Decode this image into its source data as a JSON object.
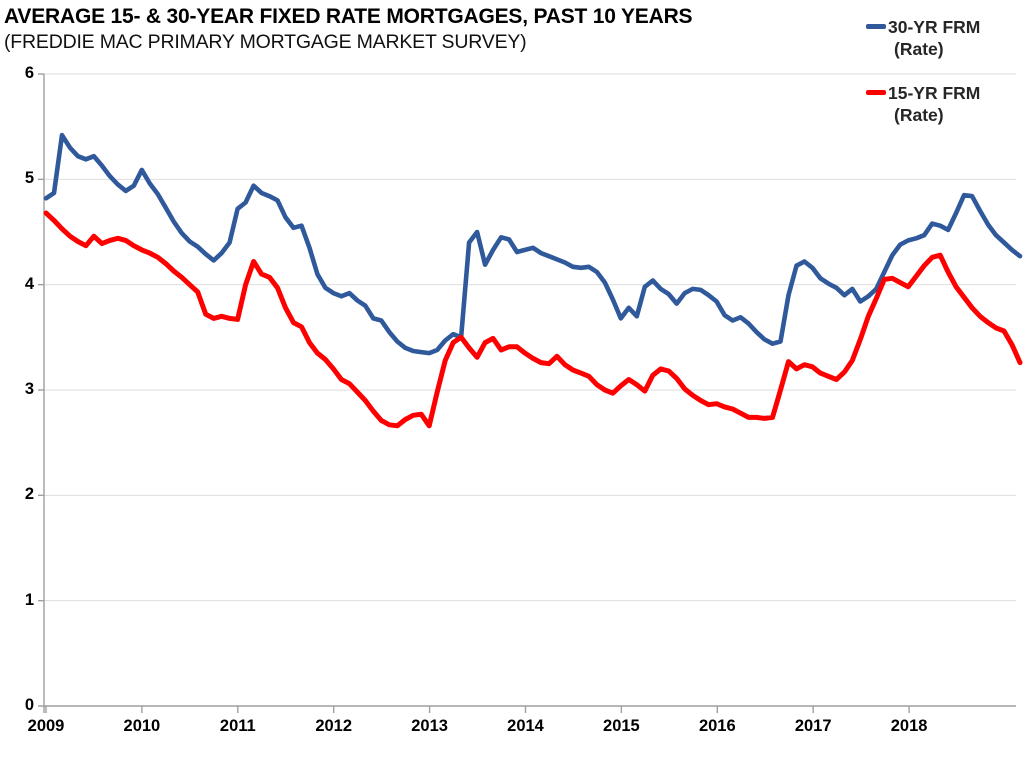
{
  "header": {
    "title": "AVERAGE 15- & 30-YEAR FIXED RATE MORTGAGES, PAST 10 YEARS",
    "subtitle": "(FREDDIE MAC PRIMARY MORTGAGE MARKET SURVEY)"
  },
  "legend": {
    "items": [
      {
        "label": "30-YR FRM (Rate)",
        "line1": "30-YR FRM",
        "line2": "(Rate)",
        "color": "#30599B"
      },
      {
        "label": "15-YR FRM (Rate)",
        "line1": "15-YR FRM",
        "line2": "(Rate)",
        "color": "#FF0000"
      }
    ]
  },
  "chart_data": {
    "type": "line",
    "title": "AVERAGE 15- & 30-YEAR FIXED RATE MORTGAGES, PAST 10 YEARS",
    "subtitle": "(FREDDIE MAC PRIMARY MORTGAGE MARKET SURVEY)",
    "xlabel": "",
    "ylabel": "",
    "x_tick_labels": [
      "2009",
      "2010",
      "2011",
      "2012",
      "2013",
      "2014",
      "2015",
      "2016",
      "2017",
      "2018"
    ],
    "y_tick_labels": [
      "0",
      "1",
      "2",
      "3",
      "4",
      "5",
      "6"
    ],
    "ylim": [
      0,
      6
    ],
    "x_frequency": "monthly",
    "grid": "horizontal-only",
    "legend_position": "top-right",
    "gridline_color": "#DEDEDE",
    "axis_color": "#9E9E9E",
    "series": [
      {
        "name": "30-YR FRM (Rate)",
        "color": "#30599B",
        "stroke_width": 4.6,
        "values": [
          4.82,
          4.87,
          5.42,
          5.3,
          5.22,
          5.19,
          5.22,
          5.13,
          5.03,
          4.95,
          4.89,
          4.94,
          5.09,
          4.96,
          4.86,
          4.73,
          4.6,
          4.49,
          4.41,
          4.36,
          4.29,
          4.23,
          4.3,
          4.4,
          4.72,
          4.78,
          4.94,
          4.87,
          4.84,
          4.8,
          4.64,
          4.54,
          4.56,
          4.35,
          4.1,
          3.97,
          3.92,
          3.89,
          3.92,
          3.85,
          3.8,
          3.68,
          3.66,
          3.55,
          3.46,
          3.4,
          3.37,
          3.36,
          3.35,
          3.38,
          3.47,
          3.53,
          3.5,
          4.4,
          4.5,
          4.19,
          4.33,
          4.45,
          4.43,
          4.31,
          4.33,
          4.35,
          4.3,
          4.27,
          4.24,
          4.21,
          4.17,
          4.16,
          4.17,
          4.12,
          4.02,
          3.86,
          3.68,
          3.78,
          3.7,
          3.98,
          4.04,
          3.96,
          3.91,
          3.82,
          3.92,
          3.96,
          3.95,
          3.9,
          3.84,
          3.71,
          3.66,
          3.69,
          3.63,
          3.55,
          3.48,
          3.44,
          3.46,
          3.9,
          4.18,
          4.22,
          4.16,
          4.06,
          4.01,
          3.97,
          3.9,
          3.96,
          3.84,
          3.89,
          3.96,
          4.12,
          4.28,
          4.38,
          4.42,
          4.44,
          4.47,
          4.58,
          4.56,
          4.52,
          4.68,
          4.85,
          4.84,
          4.7,
          4.57,
          4.47,
          4.4,
          4.33,
          4.27
        ]
      },
      {
        "name": "15-YR FRM (Rate)",
        "color": "#FF0000",
        "stroke_width": 5,
        "values": [
          4.68,
          4.61,
          4.53,
          4.46,
          4.41,
          4.37,
          4.46,
          4.39,
          4.42,
          4.44,
          4.42,
          4.37,
          4.33,
          4.3,
          4.26,
          4.2,
          4.13,
          4.07,
          4.0,
          3.93,
          3.72,
          3.68,
          3.7,
          3.68,
          3.67,
          4.0,
          4.22,
          4.1,
          4.07,
          3.97,
          3.78,
          3.64,
          3.6,
          3.45,
          3.35,
          3.29,
          3.2,
          3.1,
          3.06,
          2.98,
          2.9,
          2.8,
          2.71,
          2.67,
          2.66,
          2.72,
          2.76,
          2.77,
          2.66,
          2.98,
          3.28,
          3.45,
          3.5,
          3.4,
          3.31,
          3.45,
          3.49,
          3.38,
          3.41,
          3.41,
          3.35,
          3.3,
          3.26,
          3.25,
          3.32,
          3.24,
          3.19,
          3.16,
          3.13,
          3.05,
          3.0,
          2.97,
          3.04,
          3.1,
          3.05,
          2.99,
          3.14,
          3.2,
          3.18,
          3.11,
          3.01,
          2.95,
          2.9,
          2.86,
          2.87,
          2.84,
          2.82,
          2.78,
          2.74,
          2.74,
          2.73,
          2.74,
          3.0,
          3.27,
          3.2,
          3.24,
          3.22,
          3.16,
          3.13,
          3.1,
          3.17,
          3.28,
          3.48,
          3.7,
          3.87,
          4.05,
          4.06,
          4.02,
          3.98,
          4.08,
          4.18,
          4.26,
          4.28,
          4.12,
          3.98,
          3.88,
          3.78,
          3.7,
          3.64,
          3.59,
          3.56,
          3.43,
          3.26
        ]
      }
    ]
  }
}
